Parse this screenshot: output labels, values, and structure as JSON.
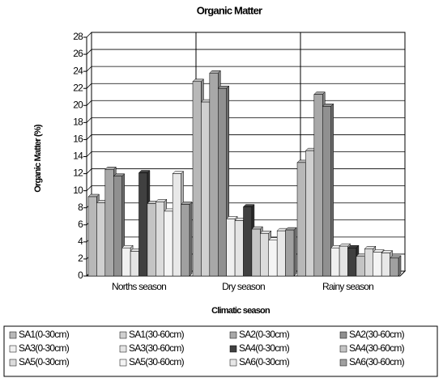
{
  "chart_data": {
    "type": "bar",
    "title": "Organic Matter",
    "x_label": "Climatic season",
    "y_label": "Organic Matter (%)",
    "categories": [
      "Norths season",
      "Dry season",
      "Rainy season"
    ],
    "series": [
      {
        "name": "SA1(0-30cm)",
        "color": "#b8b8b8",
        "values": [
          9.3,
          22.8,
          13.3
        ]
      },
      {
        "name": "SA1(30-60cm)",
        "color": "#d0d0d0",
        "values": [
          8.6,
          20.4,
          14.7
        ]
      },
      {
        "name": "SA2(0-30cm)",
        "color": "#a8a8a8",
        "values": [
          12.5,
          23.8,
          21.3
        ]
      },
      {
        "name": "SA2(30-60cm)",
        "color": "#909090",
        "values": [
          11.7,
          22.0,
          19.9
        ]
      },
      {
        "name": "SA3(0-30cm)",
        "color": "#f0f0f0",
        "values": [
          3.3,
          6.7,
          3.3
        ]
      },
      {
        "name": "SA3(30-60cm)",
        "color": "#e4e4e4",
        "values": [
          2.9,
          6.5,
          3.5
        ]
      },
      {
        "name": "SA4(0-30cm)",
        "color": "#404040",
        "values": [
          12.1,
          8.1,
          3.3
        ]
      },
      {
        "name": "SA4(30-60cm)",
        "color": "#c4c4c4",
        "values": [
          8.5,
          5.5,
          2.3
        ]
      },
      {
        "name": "SA5(0-30cm)",
        "color": "#dcdcdc",
        "values": [
          8.7,
          5.0,
          3.2
        ]
      },
      {
        "name": "SA5(30-60cm)",
        "color": "#f4f4f4",
        "values": [
          7.6,
          4.2,
          2.8
        ]
      },
      {
        "name": "SA6(0-30cm)",
        "color": "#e8e8e8",
        "values": [
          12.0,
          5.3,
          2.7
        ]
      },
      {
        "name": "SA6(30-60cm)",
        "color": "#a0a0a0",
        "values": [
          8.4,
          5.4,
          2.1
        ]
      }
    ],
    "ylim": [
      0,
      28
    ],
    "yticks": [
      0,
      2,
      4,
      6,
      8,
      10,
      12,
      14,
      16,
      18,
      20,
      22,
      24,
      26,
      28
    ],
    "grid": true
  }
}
